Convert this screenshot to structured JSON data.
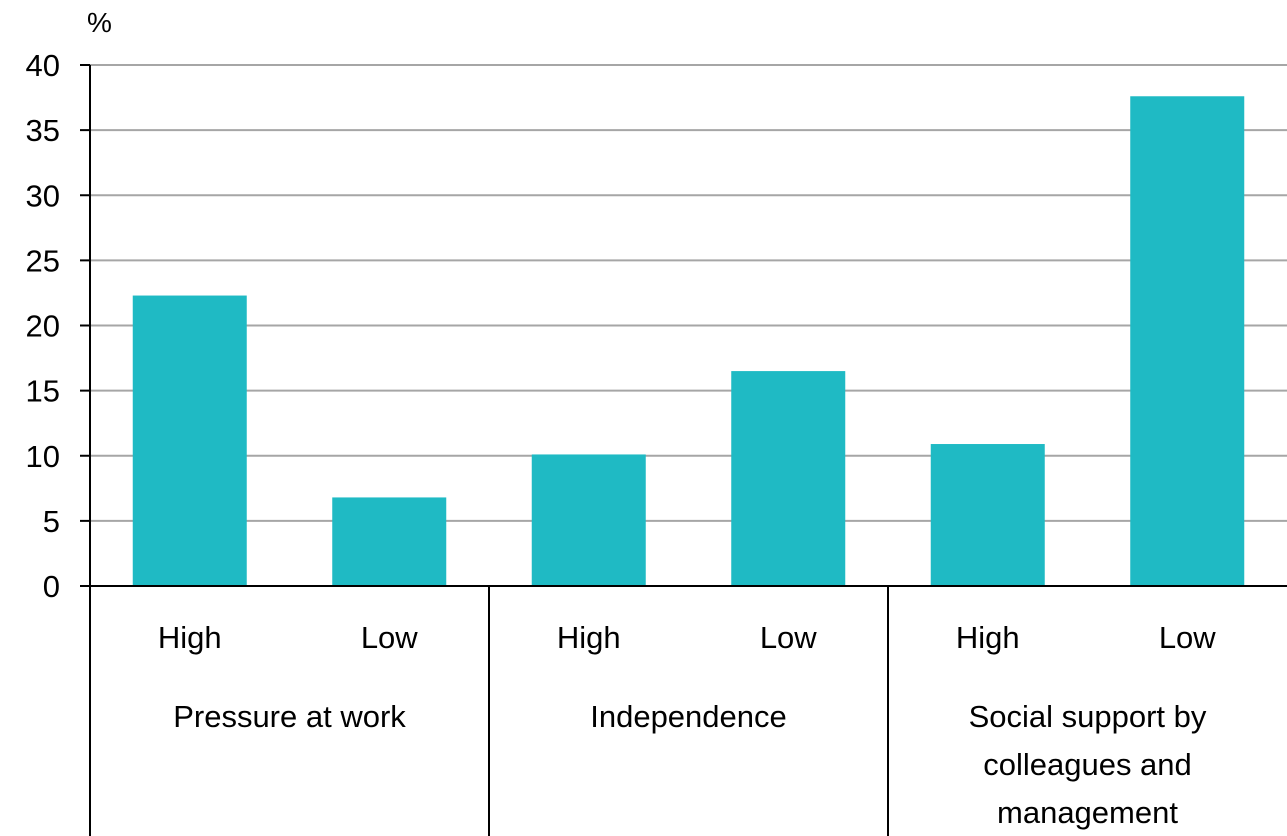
{
  "chart_data": {
    "type": "bar",
    "unit_label": "%",
    "ylim": [
      0,
      40
    ],
    "y_ticks": [
      0,
      5,
      10,
      15,
      20,
      25,
      30,
      35,
      40
    ],
    "grid": true,
    "categories": [
      "High",
      "Low",
      "High",
      "Low",
      "High",
      "Low"
    ],
    "groups": [
      {
        "lines": [
          "Pressure at work"
        ],
        "span": [
          0,
          1
        ]
      },
      {
        "lines": [
          "Independence"
        ],
        "span": [
          2,
          3
        ]
      },
      {
        "lines": [
          "Social support by",
          "colleagues and",
          "management"
        ],
        "span": [
          4,
          5
        ]
      }
    ],
    "values": [
      22.3,
      6.8,
      10.1,
      16.5,
      10.9,
      37.6
    ]
  },
  "colors": {
    "bar": "#1fbac4",
    "grid": "#a6a6a6",
    "axis": "#000000"
  }
}
